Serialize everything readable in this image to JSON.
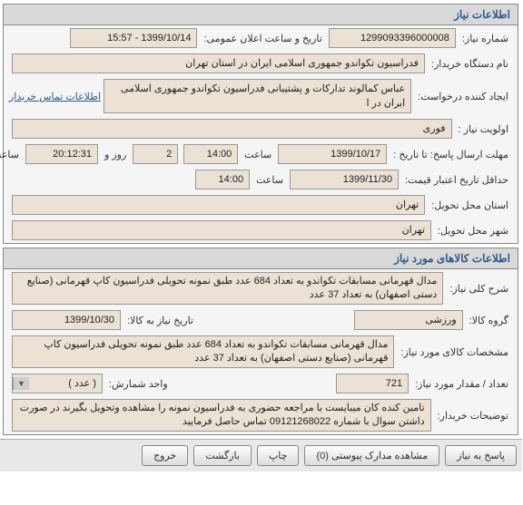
{
  "section1": {
    "title": "اطلاعات نیاز",
    "need_number_label": "شماره نیاز:",
    "need_number": "1299093396000008",
    "announce_label": "تاریخ و ساعت اعلان عمومی:",
    "announce_value": "1399/10/14 - 15:57",
    "buyer_label": "نام دستگاه خریدار:",
    "buyer_value": "فدراسیون تکواندو جمهوری اسلامی ایران در استان تهران",
    "requester_label": "ایجاد کننده درخواست:",
    "requester_value": "عباس کمالوند تدارکات و پشتیبانی فدراسیون تکواندو جمهوری اسلامی ایران در ا",
    "contact_link": "اطلاعات تماس خریدار",
    "priority_label": "اولویت نیاز :",
    "priority_value": "فوری",
    "deadline_label": "مهلت ارسال پاسخ:  تا تاریخ :",
    "deadline_date": "1399/10/17",
    "time_label": "ساعت",
    "deadline_time": "14:00",
    "days_remaining": "2",
    "days_label": "روز و",
    "time_remaining": "20:12:31",
    "remaining_label": "ساعت باقی مانده",
    "min_credit_label": "حداقل تاریخ اعتبار قیمت:",
    "min_credit_date": "1399/11/30",
    "min_credit_time": "14:00",
    "delivery_province_label": "استان محل تحویل:",
    "delivery_province": "تهران",
    "delivery_city_label": "شهر محل تحویل:",
    "delivery_city": "تهران"
  },
  "section2": {
    "title": "اطلاعات کالاهای مورد نیاز",
    "desc_label": "شرح کلی نیاز:",
    "desc_value": "مدال قهرمانی مسابقات تکواندو به تعداد 684 عدد طبق نمونه تحویلی فدراسیون کاپ قهرمانی (صنایع دستی اصفهان) به تعداد 37 عدد",
    "group_label": "گروه کالا:",
    "group_value": "ورزشی",
    "need_date_label": "تاریخ نیاز به کالا:",
    "need_date": "1399/10/30",
    "spec_label": "مشخصات کالای مورد نیاز:",
    "spec_value": "مدال قهرمانی مسابقات تکواندو به تعداد 684 عدد طبق نمونه تحویلی فدراسیون کاپ قهرمانی (صنایع دستی اصفهان) به تعداد 37 عدد",
    "qty_label": "تعداد / مقدار مورد نیاز:",
    "qty_value": "721",
    "unit_label": "واحد شمارش:",
    "unit_value": "( عدد )",
    "notes_label": "توضیحات خریدار:",
    "notes_value": "تامین کنده کان میبایست با مراجعه حضوری به فدراسیون نمونه را مشاهده وتحویل بگیرند در صورت داشتن سوال با شماره 09121268022 تماس حاصل فرمایید"
  },
  "buttons": {
    "reply": "پاسخ به نیاز",
    "attachments": "مشاهده مدارک پیوستی (0)",
    "print": "چاپ",
    "back": "بازگشت",
    "exit": "خروج"
  }
}
